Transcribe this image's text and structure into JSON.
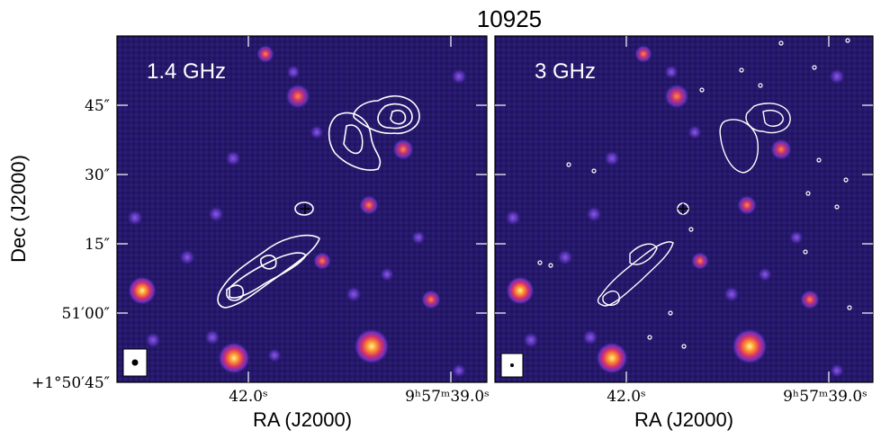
{
  "figure": {
    "title": "10925",
    "x_axis_title": "RA (J2000)",
    "y_axis_title": "Dec (J2000)",
    "ra_ticks": [
      "42.0ˢ",
      "9ʰ57ᵐ39.0ˢ"
    ],
    "dec_ticks": [
      "45″",
      "30″",
      "15″",
      "51′00″",
      "+1°50′45″"
    ]
  },
  "panels": [
    {
      "label": "1.4 GHz"
    },
    {
      "label": "3 GHz"
    }
  ],
  "colors": {
    "background_map": "#2a1a6e",
    "source_hot": "#ffd23a",
    "contour": "#ffffff"
  }
}
